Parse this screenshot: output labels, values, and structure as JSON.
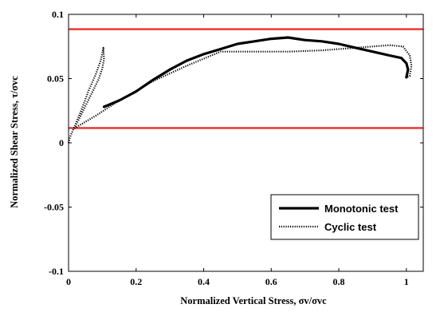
{
  "chart_data": {
    "type": "line",
    "title": "",
    "xlabel": "Normalized Vertical Stress, σv/σvc",
    "ylabel": "Normalized Shear Stress, τ/σvc",
    "xlim": [
      0,
      1.05
    ],
    "ylim": [
      -0.1,
      0.1
    ],
    "x_ticks": [
      "0",
      "0.2",
      "0.4",
      "0.6",
      "0.8",
      "1"
    ],
    "y_ticks": [
      "-0.1",
      "-0.05",
      "0",
      "0.05",
      "0.1"
    ],
    "grid": false,
    "legend_position": "bottom-right",
    "series": [
      {
        "name": "Monotonic test",
        "style": "solid",
        "color": "#000000",
        "points": [
          [
            0.105,
            0.028
          ],
          [
            0.15,
            0.033
          ],
          [
            0.2,
            0.04
          ],
          [
            0.25,
            0.049
          ],
          [
            0.3,
            0.057
          ],
          [
            0.35,
            0.064
          ],
          [
            0.4,
            0.069
          ],
          [
            0.45,
            0.073
          ],
          [
            0.5,
            0.077
          ],
          [
            0.55,
            0.079
          ],
          [
            0.6,
            0.081
          ],
          [
            0.65,
            0.082
          ],
          [
            0.7,
            0.08
          ],
          [
            0.75,
            0.079
          ],
          [
            0.8,
            0.077
          ],
          [
            0.85,
            0.074
          ],
          [
            0.9,
            0.071
          ],
          [
            0.95,
            0.068
          ],
          [
            0.985,
            0.066
          ],
          [
            1.0,
            0.062
          ],
          [
            1.005,
            0.057
          ],
          [
            1.0,
            0.051
          ]
        ]
      },
      {
        "name": "Cyclic test",
        "style": "dotted",
        "color": "#000000",
        "points": [
          [
            0.0,
            0.0
          ],
          [
            0.005,
            0.005
          ],
          [
            0.02,
            0.014
          ],
          [
            0.04,
            0.027
          ],
          [
            0.06,
            0.041
          ],
          [
            0.08,
            0.053
          ],
          [
            0.095,
            0.064
          ],
          [
            0.1,
            0.07
          ],
          [
            0.103,
            0.074
          ],
          [
            0.105,
            0.065
          ],
          [
            0.1,
            0.058
          ],
          [
            0.09,
            0.05
          ],
          [
            0.075,
            0.042
          ],
          [
            0.06,
            0.034
          ],
          [
            0.045,
            0.026
          ],
          [
            0.03,
            0.018
          ],
          [
            0.015,
            0.011
          ],
          [
            0.08,
            0.021
          ],
          [
            0.15,
            0.033
          ],
          [
            0.25,
            0.048
          ],
          [
            0.35,
            0.06
          ],
          [
            0.45,
            0.071
          ],
          [
            0.55,
            0.071
          ],
          [
            0.65,
            0.071
          ],
          [
            0.75,
            0.072
          ],
          [
            0.85,
            0.074
          ],
          [
            0.95,
            0.076
          ],
          [
            0.99,
            0.075
          ],
          [
            1.01,
            0.068
          ],
          [
            1.015,
            0.06
          ],
          [
            1.01,
            0.052
          ],
          [
            1.0,
            0.051
          ]
        ]
      }
    ],
    "reference_lines": [
      {
        "y": 0.0885,
        "color": "#e8302a"
      },
      {
        "y": 0.0115,
        "color": "#e8302a"
      }
    ]
  },
  "legend": {
    "items": [
      {
        "label": "Monotonic test",
        "style": "solid"
      },
      {
        "label": "Cyclic test",
        "style": "dotted"
      }
    ]
  }
}
